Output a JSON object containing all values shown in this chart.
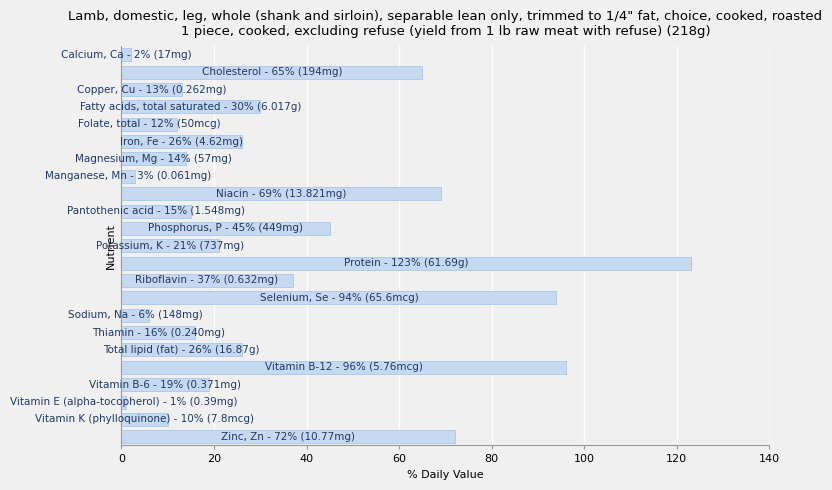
{
  "title": "Lamb, domestic, leg, whole (shank and sirloin), separable lean only, trimmed to 1/4\" fat, choice, cooked, roasted\n1 piece, cooked, excluding refuse (yield from 1 lb raw meat with refuse) (218g)",
  "xlabel": "% Daily Value",
  "ylabel": "Nutrient",
  "nutrients": [
    "Calcium, Ca - 2% (17mg)",
    "Cholesterol - 65% (194mg)",
    "Copper, Cu - 13% (0.262mg)",
    "Fatty acids, total saturated - 30% (6.017g)",
    "Folate, total - 12% (50mcg)",
    "Iron, Fe - 26% (4.62mg)",
    "Magnesium, Mg - 14% (57mg)",
    "Manganese, Mn - 3% (0.061mg)",
    "Niacin - 69% (13.821mg)",
    "Pantothenic acid - 15% (1.548mg)",
    "Phosphorus, P - 45% (449mg)",
    "Potassium, K - 21% (737mg)",
    "Protein - 123% (61.69g)",
    "Riboflavin - 37% (0.632mg)",
    "Selenium, Se - 94% (65.6mcg)",
    "Sodium, Na - 6% (148mg)",
    "Thiamin - 16% (0.240mg)",
    "Total lipid (fat) - 26% (16.87g)",
    "Vitamin B-12 - 96% (5.76mcg)",
    "Vitamin B-6 - 19% (0.371mg)",
    "Vitamin E (alpha-tocopherol) - 1% (0.39mg)",
    "Vitamin K (phylloquinone) - 10% (7.8mcg)",
    "Zinc, Zn - 72% (10.77mg)"
  ],
  "values": [
    2,
    65,
    13,
    30,
    12,
    26,
    14,
    3,
    69,
    15,
    45,
    21,
    123,
    37,
    94,
    6,
    16,
    26,
    96,
    19,
    1,
    10,
    72
  ],
  "bar_color": "#c6d9f0",
  "bar_edge_color": "#9dc3e6",
  "text_color": "#1f3864",
  "background_color": "#f0f0f0",
  "plot_bg_color": "#f0f0f0",
  "grid_color": "#ffffff",
  "xlim": [
    0,
    140
  ],
  "xticks": [
    0,
    20,
    40,
    60,
    80,
    100,
    120,
    140
  ],
  "title_fontsize": 9.5,
  "label_fontsize": 7.5,
  "tick_fontsize": 8,
  "bar_height": 0.75
}
